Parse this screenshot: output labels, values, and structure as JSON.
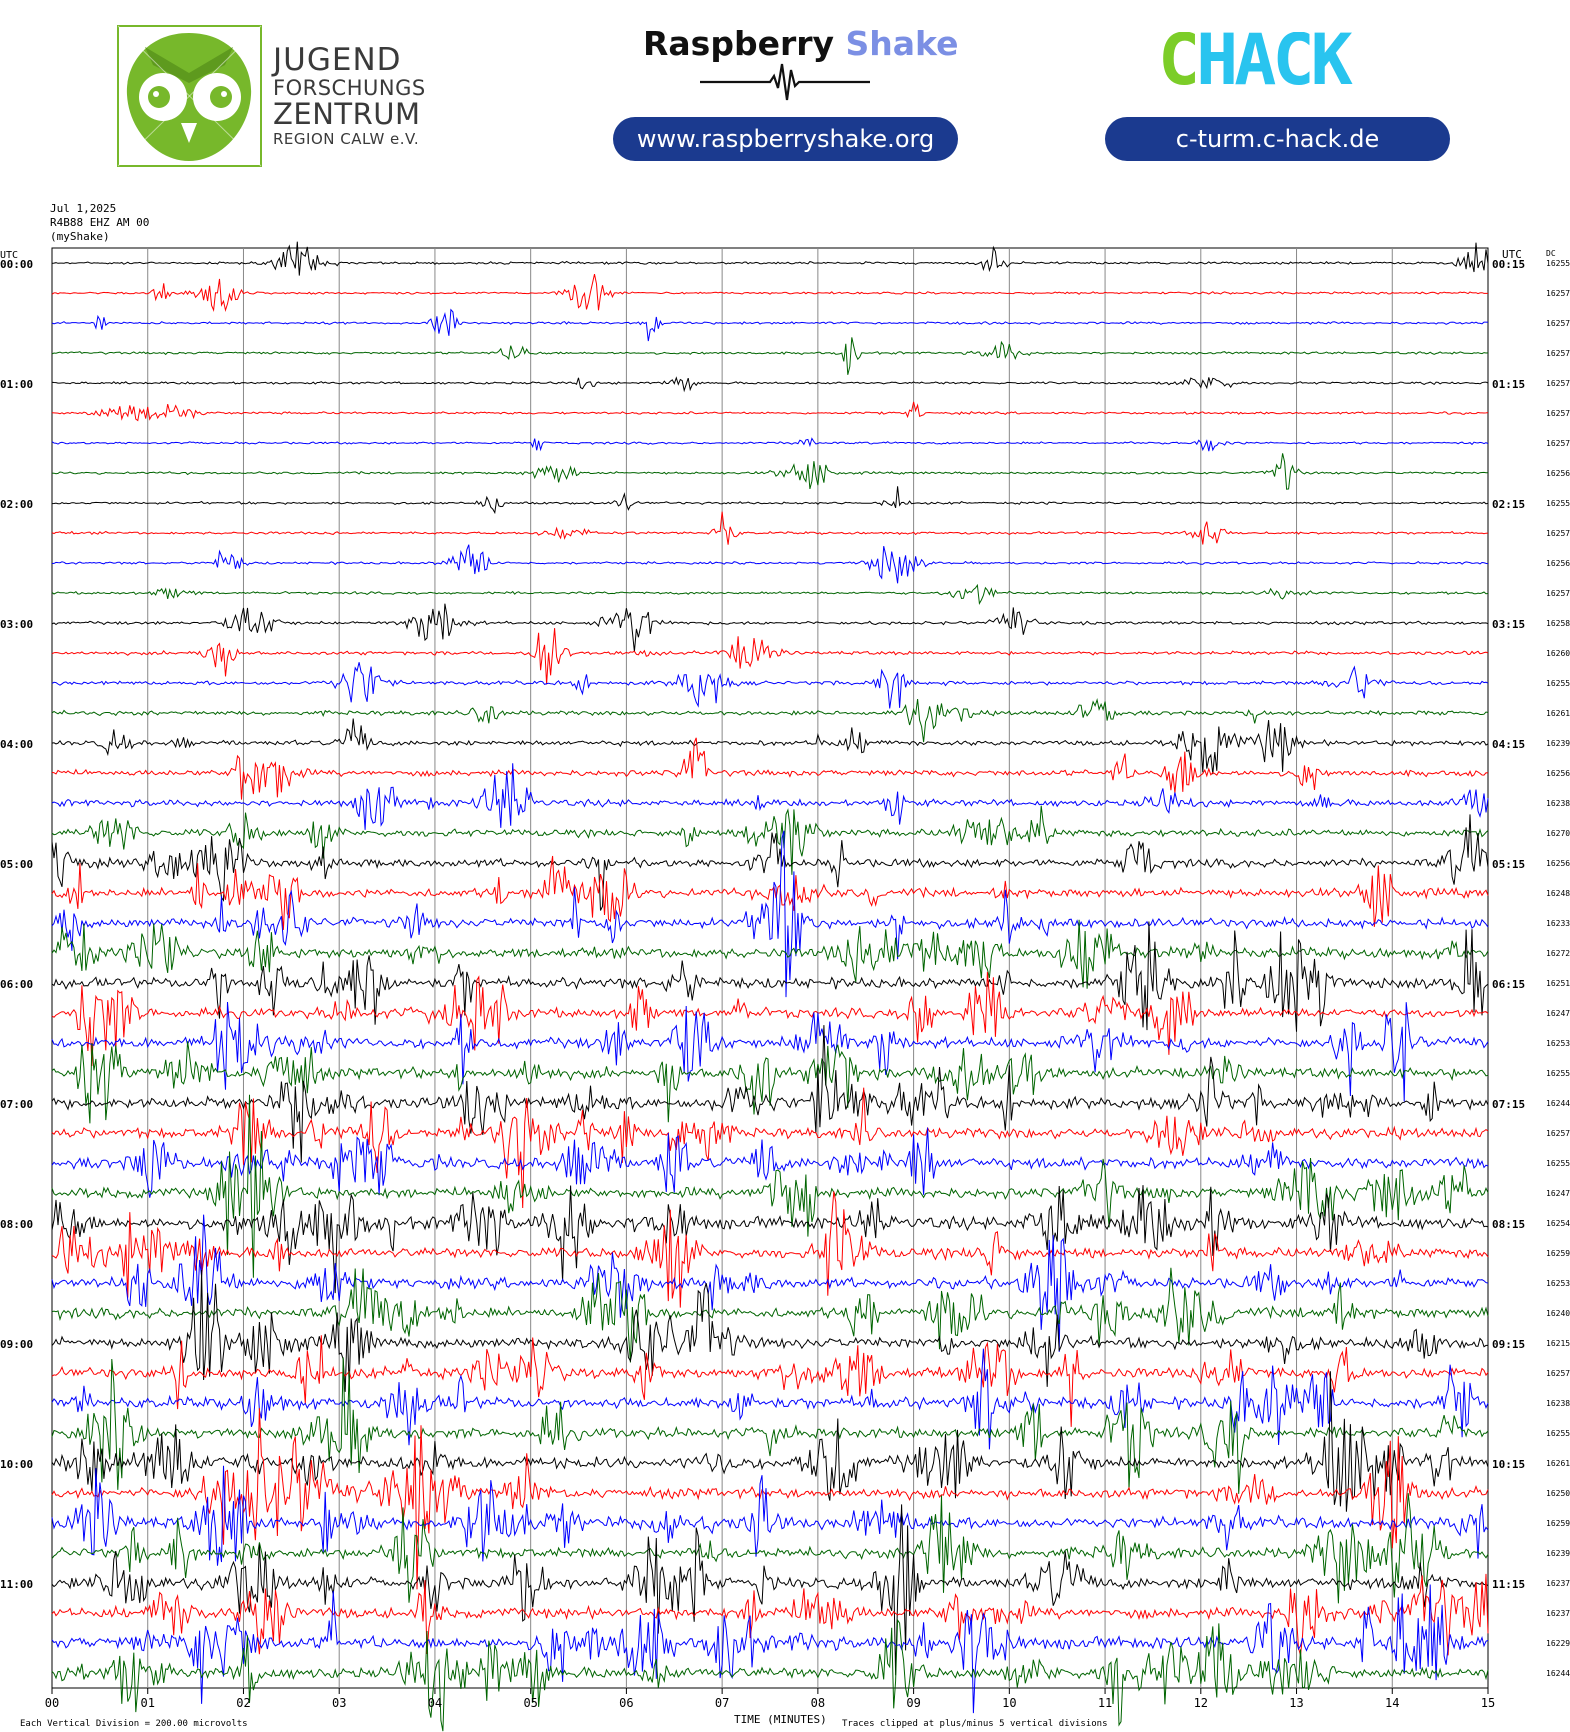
{
  "header": {
    "jfz_lines": [
      "JUGEND",
      "FORSCHUNGS",
      "ZENTRUM",
      "REGION CALW e.V."
    ],
    "raspberry_part1": "Raspberry",
    "raspberry_part2": "Shake",
    "raspberry_url": "www.raspberryshake.org",
    "chack_text": "CHACK",
    "chack_url": "c-turm.c-hack.de",
    "colors": {
      "jfz_green": "#77b82b",
      "rs_blue": "#7b8fe4",
      "pill_blue": "#1b3a8f",
      "chack_green": "#7ccd28",
      "chack_cyan": "#29c4ef"
    }
  },
  "chart_data": {
    "type": "line",
    "title_lines": [
      "Jul 1,2025",
      "R4B88 EHZ AM 00",
      "(myShake)"
    ],
    "left_axis_label": "UTC",
    "right_axis_label": "UTC",
    "dc_label": "DC",
    "xlabel": "TIME (MINUTES)",
    "x_ticks": [
      "00",
      "01",
      "02",
      "03",
      "04",
      "05",
      "06",
      "07",
      "08",
      "09",
      "10",
      "11",
      "12",
      "13",
      "14",
      "15"
    ],
    "xlim": [
      0,
      15
    ],
    "left_hour_labels": [
      "00:00",
      "01:00",
      "02:00",
      "03:00",
      "04:00",
      "05:00",
      "06:00",
      "07:00",
      "08:00",
      "09:00",
      "10:00",
      "11:00"
    ],
    "right_hour_labels": [
      "00:15",
      "01:15",
      "02:15",
      "03:15",
      "04:15",
      "05:15",
      "06:15",
      "07:15",
      "08:15",
      "09:15",
      "10:15",
      "11:15"
    ],
    "dc_values": [
      "16255",
      "16257",
      "16257",
      "16257",
      "16257",
      "16257",
      "16257",
      "16256",
      "16255",
      "16257",
      "16256",
      "16257",
      "16258",
      "16260",
      "16255",
      "16261",
      "16239",
      "16256",
      "16238",
      "16270",
      "16256",
      "16248",
      "16233",
      "16272",
      "16251",
      "16247",
      "16253",
      "16255",
      "16244",
      "16257",
      "16255",
      "16247",
      "16254",
      "16259",
      "16253",
      "16240",
      "16215",
      "16257",
      "16238",
      "16255",
      "16261",
      "16250",
      "16259",
      "16239",
      "16237",
      "16237",
      "16229",
      "16244"
    ],
    "series_colors": [
      "#000000",
      "#ff0000",
      "#0000ff",
      "#006400"
    ],
    "trace_activity": [
      0.05,
      0.04,
      0.05,
      0.05,
      0.05,
      0.05,
      0.04,
      0.05,
      0.05,
      0.06,
      0.05,
      0.06,
      0.1,
      0.12,
      0.15,
      0.18,
      0.22,
      0.28,
      0.32,
      0.36,
      0.42,
      0.45,
      0.48,
      0.55,
      0.55,
      0.5,
      0.55,
      0.55,
      0.6,
      0.55,
      0.6,
      0.55,
      0.65,
      0.55,
      0.55,
      0.55,
      0.55,
      0.55,
      0.6,
      0.55,
      0.6,
      0.55,
      0.6,
      0.55,
      0.6,
      0.55,
      0.65,
      0.6
    ],
    "footer_left": "Each Vertical Division =  200.00 microvolts",
    "footer_right": "Traces clipped at plus/minus 5 vertical divisions"
  }
}
